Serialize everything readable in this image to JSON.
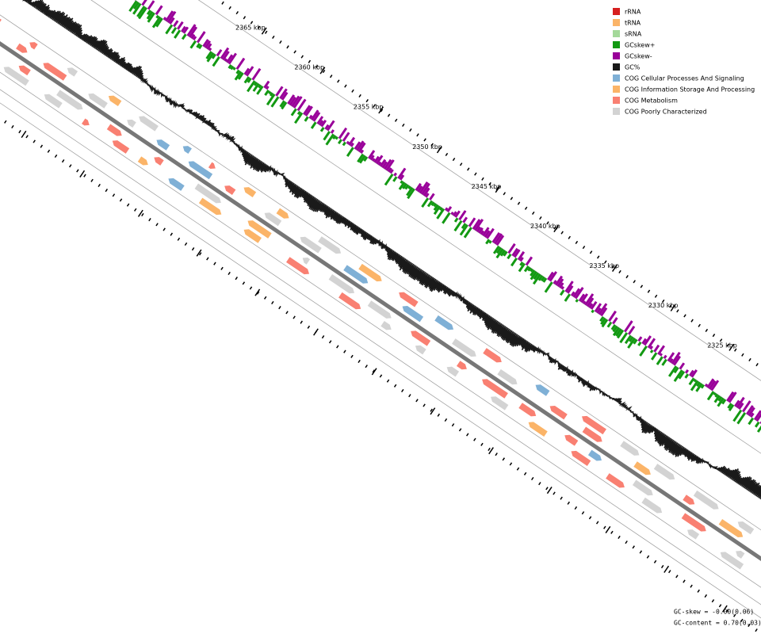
{
  "legend": [
    {
      "label": "rRNA",
      "color": "#d61f1f"
    },
    {
      "label": "tRNA",
      "color": "#fbb468"
    },
    {
      "label": "sRNA",
      "color": "#a4d99a"
    },
    {
      "label": "GCskew+",
      "color": "#129912"
    },
    {
      "label": "GCskew-",
      "color": "#990099"
    },
    {
      "label": "GC%",
      "color": "#1a1a1a"
    },
    {
      "label": "COG Cellular Processes And Signaling",
      "color": "#7fb0d6"
    },
    {
      "label": "COG Information Storage And Processing",
      "color": "#fbb468"
    },
    {
      "label": "COG Metabolism",
      "color": "#f98072"
    },
    {
      "label": "COG Poorly Characterized",
      "color": "#d3d3d3"
    }
  ],
  "ticks": [
    "2365 kbp",
    "2360 kbp",
    "2355 kbp",
    "2350 kbp",
    "2345 kbp",
    "2340 kbp",
    "2335 kbp",
    "2330 kbp",
    "2325 kbp"
  ],
  "footer": [
    "GC-skew = -0.00(0.06)",
    "GC-content = 0.70(0.03)"
  ]
}
